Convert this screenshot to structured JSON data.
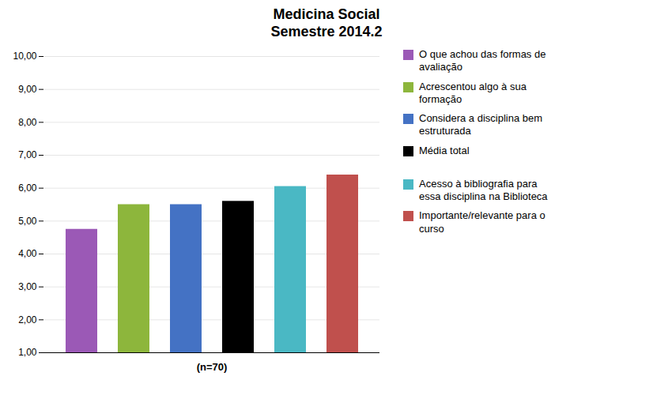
{
  "chart_data": {
    "type": "bar",
    "title": "Medicina Social\nSemestre 2014.2",
    "categories": [
      "O que achou das formas de\navaliação",
      "Acrescentou algo à sua\nformação",
      "Considera a disciplina bem\nestruturada",
      "Média total",
      "Acesso à bibliografia para\nessa disciplina na Biblioteca",
      "Importante/relevante para o\ncurso"
    ],
    "values": [
      4.75,
      5.5,
      5.5,
      5.6,
      6.05,
      6.4
    ],
    "colors": [
      "#9b59b6",
      "#8db63c",
      "#4472c4",
      "#000000",
      "#4ab8c4",
      "#c0504d"
    ],
    "xlabel": "(n=70)",
    "ylim": [
      1.0,
      10.0
    ],
    "yticks": [
      {
        "value": 1,
        "label": "1,00"
      },
      {
        "value": 2,
        "label": "2,00"
      },
      {
        "value": 3,
        "label": "3,00"
      },
      {
        "value": 4,
        "label": "4,00"
      },
      {
        "value": 5,
        "label": "5,00"
      },
      {
        "value": 6,
        "label": "6,00"
      },
      {
        "value": 7,
        "label": "7,00"
      },
      {
        "value": 8,
        "label": "8,00"
      },
      {
        "value": 9,
        "label": "9,00"
      },
      {
        "value": 10,
        "label": "10,00"
      }
    ],
    "grid": true,
    "legend": "right",
    "tick_labels": "y"
  }
}
